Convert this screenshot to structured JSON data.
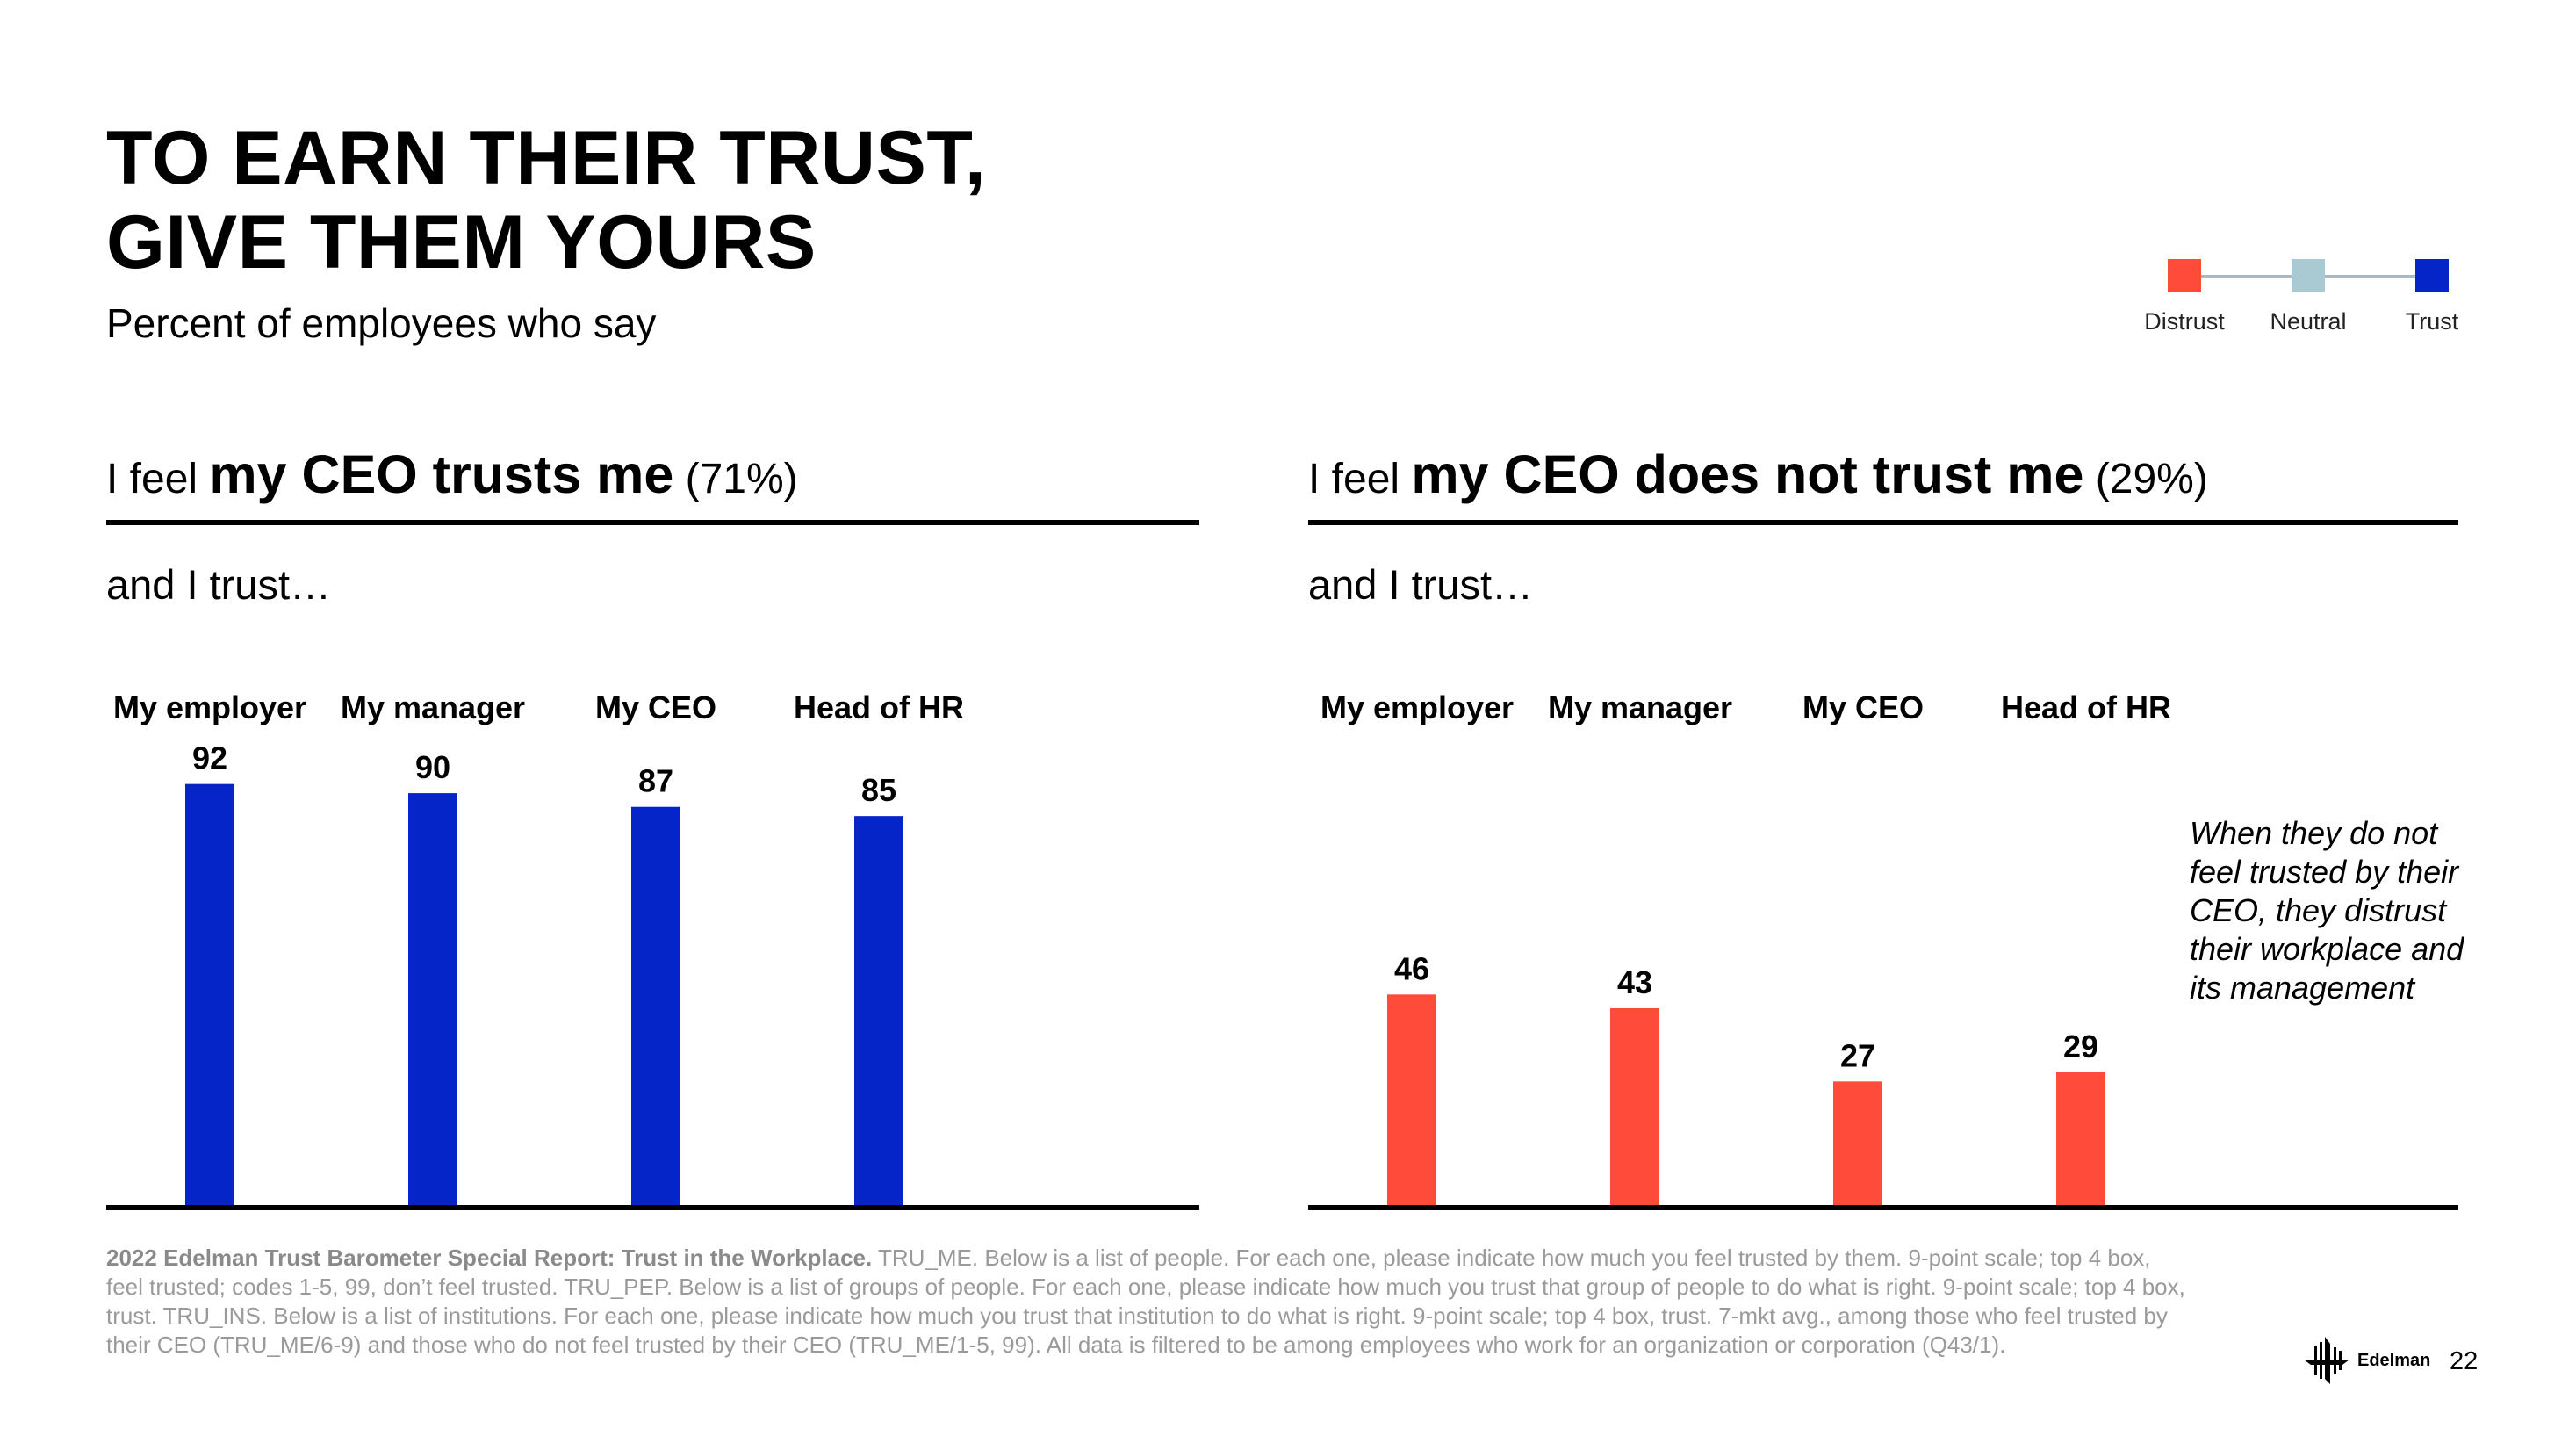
{
  "header": {
    "title_line1": "TO EARN THEIR TRUST,",
    "title_line2": "GIVE THEM YOURS",
    "subtitle": "Percent of employees who say"
  },
  "legend": {
    "items": [
      {
        "label": "Distrust",
        "color": "#ff4b3a"
      },
      {
        "label": "Neutral",
        "color": "#a9c9d3"
      },
      {
        "label": "Trust",
        "color": "#0525c8"
      }
    ]
  },
  "panels": [
    {
      "prefix": "I feel ",
      "emphasis": "my CEO trusts me",
      "suffix": " (71%)",
      "and_trust": "and I trust…"
    },
    {
      "prefix": "I feel ",
      "emphasis": "my CEO does not trust me",
      "suffix": " (29%)",
      "and_trust": "and I trust…"
    }
  ],
  "chart_data": [
    {
      "type": "bar",
      "categories": [
        "My employer",
        "My manager",
        "My CEO",
        "Head of HR"
      ],
      "values": [
        92,
        90,
        87,
        85
      ],
      "color": "#0525c8",
      "ylim": [
        0,
        100
      ]
    },
    {
      "type": "bar",
      "categories": [
        "My employer",
        "My manager",
        "My CEO",
        "Head of HR"
      ],
      "values": [
        46,
        43,
        27,
        29
      ],
      "color": "#ff4b3a",
      "ylim": [
        0,
        100
      ]
    }
  ],
  "annotation": "When they do not feel trusted by their CEO, they distrust their workplace and its management",
  "footnote": {
    "bold": "2022 Edelman Trust Barometer Special Report: Trust in the Workplace.",
    "text": " TRU_ME. Below is a list of people. For each one, please indicate how much you feel trusted by them. 9-point scale; top 4 box, feel trusted; codes 1-5, 99, don’t feel trusted. TRU_PEP. Below is a list of groups of people. For each one, please indicate how much you trust that group of people to do what is right. 9-point scale; top 4 box, trust. TRU_INS. Below is a list of institutions. For each one, please indicate how much you trust that institution to do what is right. 9-point scale; top 4 box, trust. 7-mkt avg., among those who feel trusted by their CEO (TRU_ME/6-9) and those who do not feel trusted by their CEO (TRU_ME/1-5, 99). All data is filtered to be among employees who work for an organization or corporation (Q43/1)."
  },
  "brand": {
    "name": "Edelman",
    "page_number": "22"
  }
}
